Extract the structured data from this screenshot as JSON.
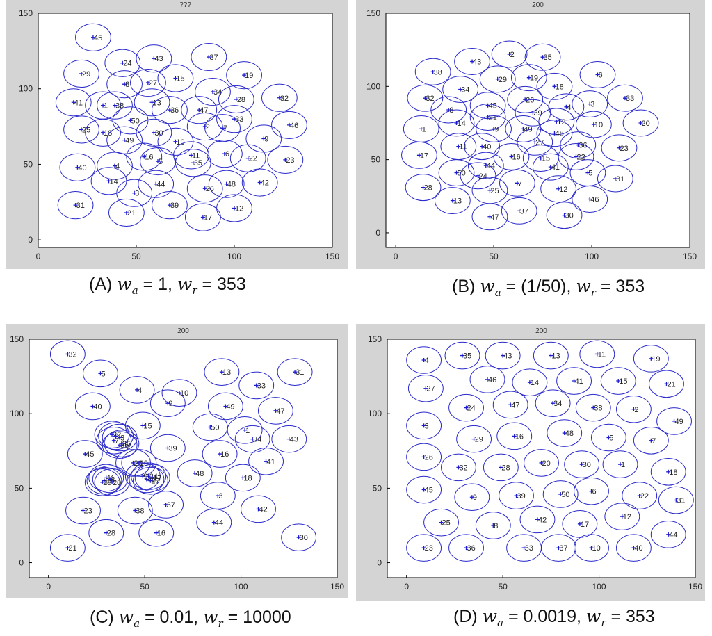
{
  "colors": {
    "circle": "#2a2acc",
    "marker": "#1a1ad4",
    "panel_bg": "#d4d4d4",
    "plot_bg": "#ffffff"
  },
  "chart_data": [
    {
      "type": "scatter",
      "panel_title": "(A)",
      "plot_title": "???",
      "caption": {
        "wa_label": "w",
        "wa_sub": "a",
        "wa_value": "= 1,",
        "wr_label": "w",
        "wr_sub": "r",
        "wr_value": "= 353"
      },
      "xlim": [
        0,
        150
      ],
      "ylim": [
        -5,
        150
      ],
      "xticks": [
        0,
        50,
        100,
        150
      ],
      "yticks": [
        0,
        50,
        100,
        150
      ],
      "circle_radius": 9,
      "points": [
        {
          "id": "45",
          "x": 28,
          "y": 134
        },
        {
          "id": "29",
          "x": 22,
          "y": 110
        },
        {
          "id": "24",
          "x": 43,
          "y": 117
        },
        {
          "id": "43",
          "x": 59,
          "y": 120
        },
        {
          "id": "37",
          "x": 87,
          "y": 121
        },
        {
          "id": "15",
          "x": 70,
          "y": 107
        },
        {
          "id": "19",
          "x": 105,
          "y": 109
        },
        {
          "id": "8",
          "x": 44,
          "y": 103
        },
        {
          "id": "27",
          "x": 56,
          "y": 104
        },
        {
          "id": "41",
          "x": 18,
          "y": 91
        },
        {
          "id": "1",
          "x": 33,
          "y": 89
        },
        {
          "id": "38",
          "x": 39,
          "y": 89
        },
        {
          "id": "13",
          "x": 58,
          "y": 91
        },
        {
          "id": "36",
          "x": 67,
          "y": 86
        },
        {
          "id": "34",
          "x": 89,
          "y": 98
        },
        {
          "id": "28",
          "x": 101,
          "y": 93
        },
        {
          "id": "32",
          "x": 123,
          "y": 94
        },
        {
          "id": "47",
          "x": 82,
          "y": 86
        },
        {
          "id": "33",
          "x": 100,
          "y": 80
        },
        {
          "id": "50",
          "x": 47,
          "y": 79
        },
        {
          "id": "25",
          "x": 22,
          "y": 73
        },
        {
          "id": "18",
          "x": 33,
          "y": 71
        },
        {
          "id": "30",
          "x": 59,
          "y": 71
        },
        {
          "id": "2",
          "x": 85,
          "y": 75
        },
        {
          "id": "7",
          "x": 94,
          "y": 74
        },
        {
          "id": "46",
          "x": 128,
          "y": 76
        },
        {
          "id": "49",
          "x": 44,
          "y": 66
        },
        {
          "id": "10",
          "x": 70,
          "y": 65
        },
        {
          "id": "9",
          "x": 115,
          "y": 67
        },
        {
          "id": "40",
          "x": 20,
          "y": 48
        },
        {
          "id": "16",
          "x": 54,
          "y": 55
        },
        {
          "id": "11",
          "x": 78,
          "y": 56
        },
        {
          "id": "6",
          "x": 95,
          "y": 57
        },
        {
          "id": "22",
          "x": 107,
          "y": 54
        },
        {
          "id": "23",
          "x": 126,
          "y": 53
        },
        {
          "id": "4",
          "x": 39,
          "y": 49
        },
        {
          "id": "5",
          "x": 61,
          "y": 52
        },
        {
          "id": "35",
          "x": 79,
          "y": 51
        },
        {
          "id": "14",
          "x": 36,
          "y": 39
        },
        {
          "id": "44",
          "x": 60,
          "y": 37
        },
        {
          "id": "3",
          "x": 49,
          "y": 31
        },
        {
          "id": "26",
          "x": 85,
          "y": 34
        },
        {
          "id": "48",
          "x": 96,
          "y": 37
        },
        {
          "id": "42",
          "x": 113,
          "y": 38
        },
        {
          "id": "31",
          "x": 19,
          "y": 23
        },
        {
          "id": "21",
          "x": 45,
          "y": 18
        },
        {
          "id": "39",
          "x": 67,
          "y": 23
        },
        {
          "id": "17",
          "x": 84,
          "y": 15
        },
        {
          "id": "12",
          "x": 100,
          "y": 21
        }
      ]
    },
    {
      "type": "scatter",
      "panel_title": "(B)",
      "plot_title": "200",
      "caption": {
        "wa_label": "w",
        "wa_sub": "a",
        "wa_value": "= (1/50),",
        "wr_label": "w",
        "wr_sub": "r",
        "wr_value": "= 353"
      },
      "xlim": [
        -5,
        150
      ],
      "ylim": [
        -10,
        150
      ],
      "xticks": [
        0,
        50,
        100,
        150
      ],
      "yticks": [
        0,
        50,
        100,
        150
      ],
      "circle_radius": 9,
      "points": [
        {
          "id": "2",
          "x": 58,
          "y": 122
        },
        {
          "id": "35",
          "x": 75,
          "y": 120
        },
        {
          "id": "43",
          "x": 39,
          "y": 117
        },
        {
          "id": "38",
          "x": 19,
          "y": 110
        },
        {
          "id": "6",
          "x": 103,
          "y": 108
        },
        {
          "id": "29",
          "x": 52,
          "y": 105
        },
        {
          "id": "19",
          "x": 68,
          "y": 106
        },
        {
          "id": "18",
          "x": 81,
          "y": 100
        },
        {
          "id": "34",
          "x": 33,
          "y": 98
        },
        {
          "id": "33",
          "x": 117,
          "y": 92
        },
        {
          "id": "32",
          "x": 15,
          "y": 92
        },
        {
          "id": "26",
          "x": 66,
          "y": 91
        },
        {
          "id": "45",
          "x": 47,
          "y": 87
        },
        {
          "id": "3",
          "x": 99,
          "y": 88
        },
        {
          "id": "4",
          "x": 87,
          "y": 86
        },
        {
          "id": "8",
          "x": 27,
          "y": 84
        },
        {
          "id": "39",
          "x": 70,
          "y": 82
        },
        {
          "id": "20",
          "x": 125,
          "y": 75
        },
        {
          "id": "21",
          "x": 47,
          "y": 79
        },
        {
          "id": "12",
          "x": 82,
          "y": 76
        },
        {
          "id": "14",
          "x": 31,
          "y": 75
        },
        {
          "id": "10",
          "x": 101,
          "y": 74
        },
        {
          "id": "1",
          "x": 13,
          "y": 71
        },
        {
          "id": "9",
          "x": 50,
          "y": 71
        },
        {
          "id": "49",
          "x": 65,
          "y": 71
        },
        {
          "id": "48",
          "x": 81,
          "y": 68
        },
        {
          "id": "27",
          "x": 71,
          "y": 62
        },
        {
          "id": "36",
          "x": 93,
          "y": 60
        },
        {
          "id": "11",
          "x": 32,
          "y": 59
        },
        {
          "id": "40",
          "x": 44,
          "y": 59
        },
        {
          "id": "23",
          "x": 114,
          "y": 58
        },
        {
          "id": "17",
          "x": 12,
          "y": 53
        },
        {
          "id": "16",
          "x": 59,
          "y": 52
        },
        {
          "id": "15",
          "x": 74,
          "y": 51
        },
        {
          "id": "22",
          "x": 92,
          "y": 52
        },
        {
          "id": "44",
          "x": 46,
          "y": 46
        },
        {
          "id": "41",
          "x": 79,
          "y": 45
        },
        {
          "id": "5",
          "x": 98,
          "y": 41
        },
        {
          "id": "50",
          "x": 31,
          "y": 41
        },
        {
          "id": "24",
          "x": 42,
          "y": 39
        },
        {
          "id": "31",
          "x": 112,
          "y": 37
        },
        {
          "id": "7",
          "x": 62,
          "y": 34
        },
        {
          "id": "28",
          "x": 14,
          "y": 31
        },
        {
          "id": "12",
          "x": 83,
          "y": 30
        },
        {
          "id": "25",
          "x": 48,
          "y": 29
        },
        {
          "id": "13",
          "x": 29,
          "y": 22
        },
        {
          "id": "46",
          "x": 99,
          "y": 23
        },
        {
          "id": "37",
          "x": 63,
          "y": 15
        },
        {
          "id": "30",
          "x": 86,
          "y": 12
        },
        {
          "id": "47",
          "x": 48,
          "y": 11
        }
      ]
    },
    {
      "type": "scatter",
      "panel_title": "(C)",
      "plot_title": "200",
      "caption": {
        "wa_label": "w",
        "wa_sub": "a",
        "wa_value": "= 0.01,",
        "wr_label": "w",
        "wr_sub": "r",
        "wr_value": "= 10000"
      },
      "xlim": [
        -10,
        150
      ],
      "ylim": [
        -10,
        150
      ],
      "xticks": [
        0,
        50,
        100,
        150
      ],
      "yticks": [
        0,
        50,
        100,
        150
      ],
      "circle_radius": 9,
      "points": [
        {
          "id": "32",
          "x": 10,
          "y": 140
        },
        {
          "id": "5",
          "x": 27,
          "y": 127
        },
        {
          "id": "13",
          "x": 90,
          "y": 128
        },
        {
          "id": "31",
          "x": 128,
          "y": 128
        },
        {
          "id": "4",
          "x": 46,
          "y": 116
        },
        {
          "id": "10",
          "x": 68,
          "y": 114
        },
        {
          "id": "33",
          "x": 108,
          "y": 119
        },
        {
          "id": "40",
          "x": 23,
          "y": 105
        },
        {
          "id": "9",
          "x": 62,
          "y": 107
        },
        {
          "id": "49",
          "x": 92,
          "y": 105
        },
        {
          "id": "47",
          "x": 118,
          "y": 102
        },
        {
          "id": "15",
          "x": 49,
          "y": 92
        },
        {
          "id": "50",
          "x": 84,
          "y": 91
        },
        {
          "id": "1",
          "x": 102,
          "y": 89
        },
        {
          "id": "43",
          "x": 125,
          "y": 83
        },
        {
          "id": "22",
          "x": 33,
          "y": 86
        },
        {
          "id": "2",
          "x": 35,
          "y": 85
        },
        {
          "id": "3",
          "x": 37,
          "y": 84
        },
        {
          "id": "7",
          "x": 34,
          "y": 82
        },
        {
          "id": "34",
          "x": 106,
          "y": 83
        },
        {
          "id": "35",
          "x": 38,
          "y": 80
        },
        {
          "id": "36",
          "x": 37,
          "y": 79
        },
        {
          "id": "39",
          "x": 62,
          "y": 77
        },
        {
          "id": "45",
          "x": 19,
          "y": 73
        },
        {
          "id": "16",
          "x": 89,
          "y": 73
        },
        {
          "id": "41",
          "x": 113,
          "y": 68
        },
        {
          "id": "26",
          "x": 44,
          "y": 67
        },
        {
          "id": "19",
          "x": 47,
          "y": 67
        },
        {
          "id": "48",
          "x": 76,
          "y": 60
        },
        {
          "id": "18",
          "x": 101,
          "y": 57
        },
        {
          "id": "11",
          "x": 30,
          "y": 57
        },
        {
          "id": "6",
          "x": 29,
          "y": 55
        },
        {
          "id": "8",
          "x": 32,
          "y": 56
        },
        {
          "id": "20",
          "x": 33,
          "y": 54
        },
        {
          "id": "29",
          "x": 28,
          "y": 54
        },
        {
          "id": "9b",
          "x": 49,
          "y": 58
        },
        {
          "id": "24",
          "x": 52,
          "y": 58
        },
        {
          "id": "42b",
          "x": 51,
          "y": 56
        },
        {
          "id": "17",
          "x": 54,
          "y": 57
        },
        {
          "id": "27",
          "x": 53,
          "y": 55
        },
        {
          "id": "3b",
          "x": 88,
          "y": 45
        },
        {
          "id": "37",
          "x": 61,
          "y": 39
        },
        {
          "id": "23",
          "x": 18,
          "y": 35
        },
        {
          "id": "38",
          "x": 45,
          "y": 35
        },
        {
          "id": "42",
          "x": 109,
          "y": 36
        },
        {
          "id": "44",
          "x": 86,
          "y": 27
        },
        {
          "id": "28",
          "x": 30,
          "y": 20
        },
        {
          "id": "16b",
          "x": 56,
          "y": 20
        },
        {
          "id": "30",
          "x": 130,
          "y": 17
        },
        {
          "id": "21",
          "x": 10,
          "y": 10
        }
      ]
    },
    {
      "type": "scatter",
      "panel_title": "(D)",
      "plot_title": "200",
      "caption": {
        "wa_label": "w",
        "wa_sub": "a",
        "wa_value": "= 0.0019,",
        "wr_label": "w",
        "wr_sub": "r",
        "wr_value": "= 353"
      },
      "xlim": [
        -10,
        150
      ],
      "ylim": [
        -10,
        150
      ],
      "xticks": [
        0,
        50,
        100,
        150
      ],
      "yticks": [
        0,
        50,
        100,
        150
      ],
      "circle_radius": 9,
      "points": [
        {
          "id": "4",
          "x": 9,
          "y": 136
        },
        {
          "id": "35",
          "x": 29,
          "y": 139
        },
        {
          "id": "43",
          "x": 50,
          "y": 139
        },
        {
          "id": "13",
          "x": 75,
          "y": 139
        },
        {
          "id": "11",
          "x": 99,
          "y": 140
        },
        {
          "id": "19",
          "x": 127,
          "y": 137
        },
        {
          "id": "46",
          "x": 42,
          "y": 123
        },
        {
          "id": "14",
          "x": 64,
          "y": 121
        },
        {
          "id": "41",
          "x": 87,
          "y": 122
        },
        {
          "id": "15",
          "x": 110,
          "y": 122
        },
        {
          "id": "21",
          "x": 135,
          "y": 120
        },
        {
          "id": "27",
          "x": 10,
          "y": 117
        },
        {
          "id": "24",
          "x": 31,
          "y": 104
        },
        {
          "id": "47",
          "x": 54,
          "y": 106
        },
        {
          "id": "34",
          "x": 76,
          "y": 107
        },
        {
          "id": "38",
          "x": 97,
          "y": 104
        },
        {
          "id": "2",
          "x": 118,
          "y": 103
        },
        {
          "id": "3",
          "x": 9,
          "y": 92
        },
        {
          "id": "49",
          "x": 139,
          "y": 95
        },
        {
          "id": "29",
          "x": 35,
          "y": 83
        },
        {
          "id": "16",
          "x": 56,
          "y": 85
        },
        {
          "id": "48",
          "x": 82,
          "y": 87
        },
        {
          "id": "5",
          "x": 105,
          "y": 84
        },
        {
          "id": "7",
          "x": 127,
          "y": 82
        },
        {
          "id": "26",
          "x": 9,
          "y": 71
        },
        {
          "id": "32",
          "x": 27,
          "y": 64
        },
        {
          "id": "28",
          "x": 49,
          "y": 64
        },
        {
          "id": "20",
          "x": 70,
          "y": 67
        },
        {
          "id": "30",
          "x": 91,
          "y": 66
        },
        {
          "id": "1",
          "x": 111,
          "y": 66
        },
        {
          "id": "18",
          "x": 136,
          "y": 61
        },
        {
          "id": "45",
          "x": 9,
          "y": 49
        },
        {
          "id": "9",
          "x": 34,
          "y": 44
        },
        {
          "id": "39",
          "x": 57,
          "y": 45
        },
        {
          "id": "50",
          "x": 80,
          "y": 46
        },
        {
          "id": "6",
          "x": 96,
          "y": 48
        },
        {
          "id": "22",
          "x": 121,
          "y": 45
        },
        {
          "id": "31",
          "x": 140,
          "y": 42
        },
        {
          "id": "25",
          "x": 18,
          "y": 27
        },
        {
          "id": "8",
          "x": 45,
          "y": 25
        },
        {
          "id": "42",
          "x": 68,
          "y": 29
        },
        {
          "id": "17",
          "x": 90,
          "y": 26
        },
        {
          "id": "12",
          "x": 112,
          "y": 31
        },
        {
          "id": "44",
          "x": 136,
          "y": 19
        },
        {
          "id": "23",
          "x": 9,
          "y": 10
        },
        {
          "id": "36",
          "x": 31,
          "y": 10
        },
        {
          "id": "33",
          "x": 61,
          "y": 10
        },
        {
          "id": "37",
          "x": 79,
          "y": 10
        },
        {
          "id": "10",
          "x": 96,
          "y": 10
        },
        {
          "id": "40",
          "x": 118,
          "y": 10
        }
      ]
    }
  ],
  "captions": [
    {
      "prefix": "(A)"
    },
    {
      "prefix": "(B)"
    },
    {
      "prefix": "(C)"
    },
    {
      "prefix": "(D)"
    }
  ]
}
